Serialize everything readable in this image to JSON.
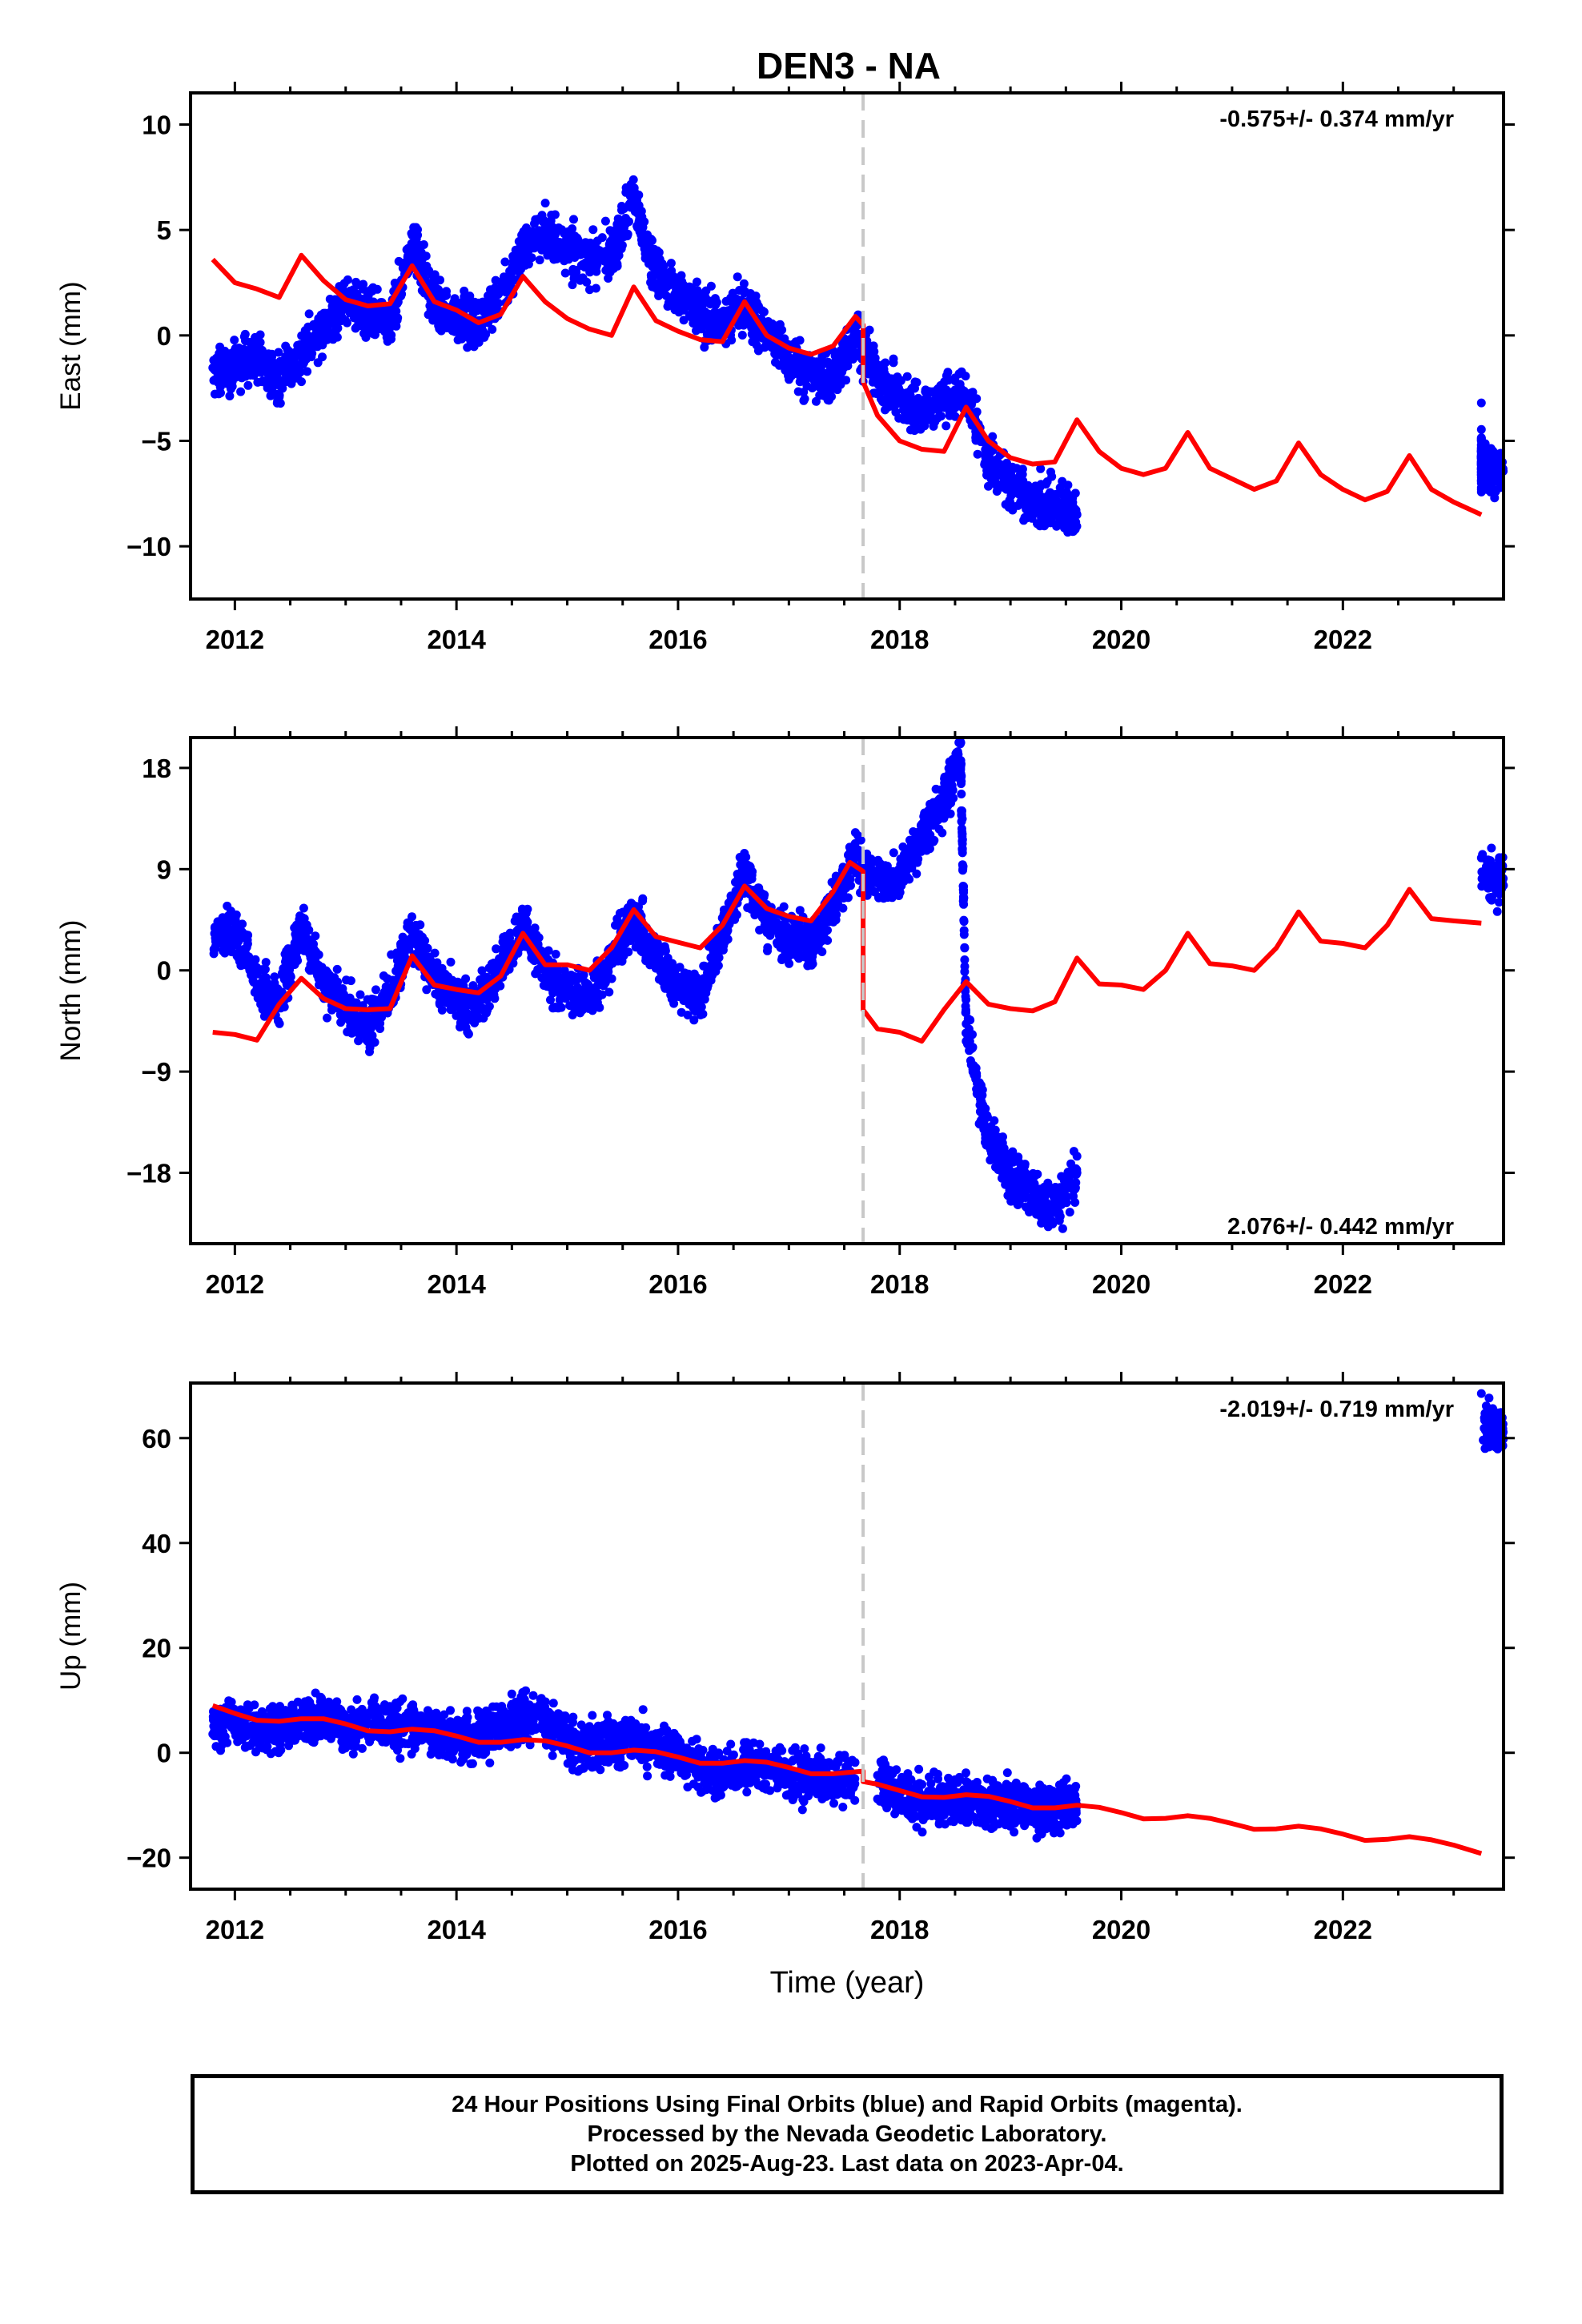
{
  "title": "DEN3 - NA",
  "xlabel": "Time (year)",
  "footer": {
    "line1": "24 Hour Positions Using Final Orbits (blue) and Rapid Orbits (magenta).",
    "line2": "Processed by the Nevada Geodetic Laboratory.",
    "line3": "Plotted on 2025-Aug-23. Last data on 2023-Apr-04."
  },
  "colors": {
    "data": "#0000ff",
    "model": "#ff0000",
    "break": "#c8c8c8",
    "axes": "#000000"
  },
  "chart_data": [
    {
      "type": "scatter",
      "panel": "east",
      "ylabel": "East (mm)",
      "rate_label": "-0.575+/- 0.374 mm/yr",
      "rate_position": "top-right",
      "xlim": [
        2011.6,
        2023.45
      ],
      "ylim": [
        -12.5,
        11.5
      ],
      "xticks": [
        2012,
        2014,
        2016,
        2018,
        2020,
        2022
      ],
      "yticks": [
        -10,
        -5,
        0,
        5,
        10
      ],
      "yticklabels": [
        "−10",
        "−5",
        "0",
        "5",
        "10"
      ],
      "equipment_break": 2017.67,
      "data_points_approx": [
        [
          2011.8,
          -2.0
        ],
        [
          2012.0,
          -1.5
        ],
        [
          2012.2,
          -1.0
        ],
        [
          2012.4,
          -2.0
        ],
        [
          2012.6,
          -1.0
        ],
        [
          2012.8,
          0.5
        ],
        [
          2013.0,
          1.5
        ],
        [
          2013.2,
          1.0
        ],
        [
          2013.4,
          0.5
        ],
        [
          2013.6,
          4.5
        ],
        [
          2013.8,
          1.5
        ],
        [
          2014.0,
          1.0
        ],
        [
          2014.2,
          0.5
        ],
        [
          2014.4,
          2.0
        ],
        [
          2014.6,
          4.0
        ],
        [
          2014.8,
          5.0
        ],
        [
          2015.0,
          4.0
        ],
        [
          2015.2,
          3.5
        ],
        [
          2015.4,
          4.0
        ],
        [
          2015.6,
          6.5
        ],
        [
          2015.8,
          3.0
        ],
        [
          2016.0,
          2.0
        ],
        [
          2016.2,
          1.0
        ],
        [
          2016.4,
          0.5
        ],
        [
          2016.6,
          1.5
        ],
        [
          2016.8,
          0.0
        ],
        [
          2017.0,
          -1.0
        ],
        [
          2017.2,
          -2.0
        ],
        [
          2017.4,
          -2.0
        ],
        [
          2017.6,
          0.0
        ],
        [
          2017.8,
          -2.0
        ],
        [
          2018.0,
          -3.0
        ],
        [
          2018.2,
          -3.5
        ],
        [
          2018.4,
          -3.0
        ],
        [
          2018.6,
          -3.0
        ],
        [
          2018.8,
          -6.0
        ],
        [
          2019.0,
          -7.0
        ],
        [
          2019.2,
          -8.0
        ],
        [
          2019.4,
          -8.0
        ],
        [
          2019.6,
          -8.5
        ],
        [
          2023.25,
          -3.2
        ],
        [
          2023.25,
          -5.5
        ],
        [
          2023.25,
          -6.2
        ]
      ],
      "model_points": [
        [
          2011.8,
          3.6
        ],
        [
          2012.0,
          2.5
        ],
        [
          2012.2,
          2.2
        ],
        [
          2012.4,
          1.8
        ],
        [
          2012.6,
          3.8
        ],
        [
          2012.8,
          2.6
        ],
        [
          2013.0,
          1.7
        ],
        [
          2013.2,
          1.4
        ],
        [
          2013.4,
          1.5
        ],
        [
          2013.6,
          3.3
        ],
        [
          2013.8,
          1.6
        ],
        [
          2014.0,
          1.2
        ],
        [
          2014.2,
          0.6
        ],
        [
          2014.4,
          1.0
        ],
        [
          2014.6,
          2.8
        ],
        [
          2014.8,
          1.6
        ],
        [
          2015.0,
          0.8
        ],
        [
          2015.2,
          0.3
        ],
        [
          2015.4,
          0.0
        ],
        [
          2015.6,
          2.3
        ],
        [
          2015.8,
          0.7
        ],
        [
          2016.0,
          0.2
        ],
        [
          2016.2,
          -0.2
        ],
        [
          2016.4,
          -0.3
        ],
        [
          2016.6,
          1.6
        ],
        [
          2016.8,
          0.0
        ],
        [
          2017.0,
          -0.6
        ],
        [
          2017.2,
          -0.9
        ],
        [
          2017.4,
          -0.5
        ],
        [
          2017.6,
          0.9
        ],
        [
          2017.67,
          0.5
        ],
        [
          2017.67,
          -2.2
        ],
        [
          2017.8,
          -3.8
        ],
        [
          2018.0,
          -5.0
        ],
        [
          2018.2,
          -5.4
        ],
        [
          2018.4,
          -5.5
        ],
        [
          2018.6,
          -3.4
        ],
        [
          2018.8,
          -5.0
        ],
        [
          2019.0,
          -5.8
        ],
        [
          2019.2,
          -6.1
        ],
        [
          2019.4,
          -6.0
        ],
        [
          2019.6,
          -4.0
        ],
        [
          2019.8,
          -5.5
        ],
        [
          2020.0,
          -6.3
        ],
        [
          2020.2,
          -6.6
        ],
        [
          2020.4,
          -6.3
        ],
        [
          2020.6,
          -4.6
        ],
        [
          2020.8,
          -6.3
        ],
        [
          2021.0,
          -6.8
        ],
        [
          2021.2,
          -7.3
        ],
        [
          2021.4,
          -6.9
        ],
        [
          2021.6,
          -5.1
        ],
        [
          2021.8,
          -6.6
        ],
        [
          2022.0,
          -7.3
        ],
        [
          2022.2,
          -7.8
        ],
        [
          2022.4,
          -7.4
        ],
        [
          2022.6,
          -5.7
        ],
        [
          2022.8,
          -7.3
        ],
        [
          2023.0,
          -7.9
        ],
        [
          2023.25,
          -8.5
        ]
      ]
    },
    {
      "type": "scatter",
      "panel": "north",
      "ylabel": "North (mm)",
      "rate_label": "2.076+/- 0.442 mm/yr",
      "rate_position": "bottom-right",
      "xlim": [
        2011.6,
        2023.45
      ],
      "ylim": [
        -24.3,
        20.7
      ],
      "xticks": [
        2012,
        2014,
        2016,
        2018,
        2020,
        2022
      ],
      "yticks": [
        -18,
        -9,
        0,
        9,
        18
      ],
      "yticklabels": [
        "−18",
        "−9",
        "0",
        "9",
        "18"
      ],
      "equipment_break": 2017.67,
      "data_points_approx": [
        [
          2011.8,
          3.0
        ],
        [
          2012.0,
          3.5
        ],
        [
          2012.2,
          -1.0
        ],
        [
          2012.4,
          -3.0
        ],
        [
          2012.6,
          4.0
        ],
        [
          2012.8,
          -1.0
        ],
        [
          2013.0,
          -3.0
        ],
        [
          2013.2,
          -5.0
        ],
        [
          2013.4,
          -2.0
        ],
        [
          2013.6,
          3.5
        ],
        [
          2013.8,
          -1.0
        ],
        [
          2014.0,
          -3.0
        ],
        [
          2014.2,
          -3.0
        ],
        [
          2014.4,
          0.5
        ],
        [
          2014.6,
          4.0
        ],
        [
          2014.8,
          0.0
        ],
        [
          2015.0,
          -2.0
        ],
        [
          2015.2,
          -2.5
        ],
        [
          2015.4,
          1.0
        ],
        [
          2015.6,
          5.0
        ],
        [
          2015.8,
          1.0
        ],
        [
          2016.0,
          -1.5
        ],
        [
          2016.2,
          -2.0
        ],
        [
          2016.4,
          3.0
        ],
        [
          2016.6,
          9.0
        ],
        [
          2016.8,
          4.0
        ],
        [
          2017.0,
          3.0
        ],
        [
          2017.2,
          2.0
        ],
        [
          2017.4,
          6.0
        ],
        [
          2017.6,
          10.0
        ],
        [
          2017.8,
          8.0
        ],
        [
          2018.0,
          8.0
        ],
        [
          2018.2,
          12.0
        ],
        [
          2018.4,
          15.0
        ],
        [
          2018.55,
          19.0
        ],
        [
          2018.6,
          -5.0
        ],
        [
          2018.8,
          -15.0
        ],
        [
          2019.0,
          -18.0
        ],
        [
          2019.2,
          -20.0
        ],
        [
          2019.4,
          -21.0
        ],
        [
          2019.6,
          -18.0
        ],
        [
          2023.25,
          10.0
        ],
        [
          2023.25,
          8.0
        ]
      ],
      "model_points": [
        [
          2011.8,
          -5.5
        ],
        [
          2012.0,
          -5.7
        ],
        [
          2012.2,
          -6.2
        ],
        [
          2012.4,
          -3.0
        ],
        [
          2012.6,
          -0.7
        ],
        [
          2012.8,
          -2.5
        ],
        [
          2013.0,
          -3.4
        ],
        [
          2013.2,
          -3.5
        ],
        [
          2013.4,
          -3.4
        ],
        [
          2013.6,
          1.3
        ],
        [
          2013.8,
          -1.3
        ],
        [
          2014.0,
          -1.7
        ],
        [
          2014.2,
          -2.0
        ],
        [
          2014.4,
          -0.5
        ],
        [
          2014.6,
          3.3
        ],
        [
          2014.8,
          0.5
        ],
        [
          2015.0,
          0.5
        ],
        [
          2015.2,
          0.0
        ],
        [
          2015.4,
          2.0
        ],
        [
          2015.6,
          5.4
        ],
        [
          2015.8,
          3.0
        ],
        [
          2016.0,
          2.5
        ],
        [
          2016.2,
          2.0
        ],
        [
          2016.4,
          4.0
        ],
        [
          2016.6,
          7.5
        ],
        [
          2016.8,
          5.5
        ],
        [
          2017.0,
          4.8
        ],
        [
          2017.2,
          4.4
        ],
        [
          2017.4,
          7.0
        ],
        [
          2017.55,
          9.6
        ],
        [
          2017.67,
          8.8
        ],
        [
          2017.67,
          -3.5
        ],
        [
          2017.8,
          -5.2
        ],
        [
          2018.0,
          -5.5
        ],
        [
          2018.2,
          -6.3
        ],
        [
          2018.4,
          -3.5
        ],
        [
          2018.6,
          -1.0
        ],
        [
          2018.8,
          -3.0
        ],
        [
          2019.0,
          -3.4
        ],
        [
          2019.2,
          -3.6
        ],
        [
          2019.4,
          -2.8
        ],
        [
          2019.6,
          1.1
        ],
        [
          2019.8,
          -1.2
        ],
        [
          2020.0,
          -1.3
        ],
        [
          2020.2,
          -1.7
        ],
        [
          2020.4,
          0.0
        ],
        [
          2020.6,
          3.3
        ],
        [
          2020.8,
          0.6
        ],
        [
          2021.0,
          0.4
        ],
        [
          2021.2,
          0.0
        ],
        [
          2021.4,
          2.0
        ],
        [
          2021.6,
          5.2
        ],
        [
          2021.8,
          2.6
        ],
        [
          2022.0,
          2.4
        ],
        [
          2022.2,
          2.0
        ],
        [
          2022.4,
          4.0
        ],
        [
          2022.6,
          7.2
        ],
        [
          2022.8,
          4.6
        ],
        [
          2023.0,
          4.4
        ],
        [
          2023.25,
          4.2
        ]
      ]
    },
    {
      "type": "scatter",
      "panel": "up",
      "ylabel": "Up (mm)",
      "rate_label": "-2.019+/- 0.719 mm/yr",
      "rate_position": "top-right",
      "xlim": [
        2011.6,
        2023.45
      ],
      "ylim": [
        -26,
        70.5
      ],
      "xticks": [
        2012,
        2014,
        2016,
        2018,
        2020,
        2022
      ],
      "yticks": [
        -20,
        0,
        20,
        40,
        60
      ],
      "yticklabels": [
        "−20",
        "0",
        "20",
        "40",
        "60"
      ],
      "equipment_break": 2017.67,
      "data_points_approx": [
        [
          2011.8,
          5.0
        ],
        [
          2012.0,
          6.0
        ],
        [
          2012.2,
          5.0
        ],
        [
          2012.4,
          4.0
        ],
        [
          2012.6,
          6.0
        ],
        [
          2012.8,
          7.0
        ],
        [
          2013.0,
          5.0
        ],
        [
          2013.2,
          6.0
        ],
        [
          2013.4,
          5.0
        ],
        [
          2013.6,
          5.0
        ],
        [
          2013.8,
          4.0
        ],
        [
          2014.0,
          3.0
        ],
        [
          2014.2,
          3.0
        ],
        [
          2014.4,
          5.0
        ],
        [
          2014.6,
          7.0
        ],
        [
          2014.8,
          6.0
        ],
        [
          2015.0,
          2.0
        ],
        [
          2015.2,
          1.0
        ],
        [
          2015.4,
          2.0
        ],
        [
          2015.6,
          3.0
        ],
        [
          2015.8,
          1.0
        ],
        [
          2016.0,
          0.0
        ],
        [
          2016.2,
          -3.0
        ],
        [
          2016.4,
          -4.0
        ],
        [
          2016.6,
          -2.0
        ],
        [
          2016.8,
          -3.0
        ],
        [
          2017.0,
          -4.0
        ],
        [
          2017.2,
          -4.0
        ],
        [
          2017.4,
          -5.0
        ],
        [
          2017.8,
          -6.0
        ],
        [
          2018.0,
          -8.0
        ],
        [
          2018.2,
          -9.0
        ],
        [
          2018.4,
          -9.0
        ],
        [
          2018.6,
          -9.0
        ],
        [
          2018.8,
          -10.0
        ],
        [
          2019.0,
          -10.0
        ],
        [
          2019.2,
          -10.0
        ],
        [
          2019.4,
          -11.0
        ],
        [
          2019.6,
          -10.0
        ],
        [
          2023.25,
          68.5
        ],
        [
          2023.25,
          62.0
        ]
      ],
      "model_points": [
        [
          2011.8,
          9.0
        ],
        [
          2012.0,
          7.5
        ],
        [
          2012.2,
          6.2
        ],
        [
          2012.4,
          6.0
        ],
        [
          2012.6,
          6.5
        ],
        [
          2012.8,
          6.5
        ],
        [
          2013.0,
          5.5
        ],
        [
          2013.2,
          4.2
        ],
        [
          2013.4,
          4.0
        ],
        [
          2013.6,
          4.5
        ],
        [
          2013.8,
          4.2
        ],
        [
          2014.0,
          3.2
        ],
        [
          2014.2,
          2.0
        ],
        [
          2014.4,
          2.0
        ],
        [
          2014.6,
          2.5
        ],
        [
          2014.8,
          2.3
        ],
        [
          2015.0,
          1.3
        ],
        [
          2015.2,
          0.0
        ],
        [
          2015.4,
          0.0
        ],
        [
          2015.6,
          0.5
        ],
        [
          2015.8,
          0.2
        ],
        [
          2016.0,
          -0.8
        ],
        [
          2016.2,
          -2.0
        ],
        [
          2016.4,
          -2.0
        ],
        [
          2016.6,
          -1.5
        ],
        [
          2016.8,
          -1.8
        ],
        [
          2017.0,
          -2.8
        ],
        [
          2017.2,
          -4.0
        ],
        [
          2017.4,
          -4.0
        ],
        [
          2017.67,
          -3.5
        ],
        [
          2017.67,
          -5.5
        ],
        [
          2017.8,
          -6.0
        ],
        [
          2018.0,
          -7.2
        ],
        [
          2018.2,
          -8.4
        ],
        [
          2018.4,
          -8.5
        ],
        [
          2018.6,
          -8.0
        ],
        [
          2018.8,
          -8.3
        ],
        [
          2019.0,
          -9.3
        ],
        [
          2019.2,
          -10.5
        ],
        [
          2019.4,
          -10.5
        ],
        [
          2019.6,
          -10.0
        ],
        [
          2019.8,
          -10.4
        ],
        [
          2020.0,
          -11.4
        ],
        [
          2020.2,
          -12.6
        ],
        [
          2020.4,
          -12.5
        ],
        [
          2020.6,
          -12.0
        ],
        [
          2020.8,
          -12.5
        ],
        [
          2021.0,
          -13.5
        ],
        [
          2021.2,
          -14.6
        ],
        [
          2021.4,
          -14.5
        ],
        [
          2021.6,
          -14.0
        ],
        [
          2021.8,
          -14.5
        ],
        [
          2022.0,
          -15.5
        ],
        [
          2022.2,
          -16.7
        ],
        [
          2022.4,
          -16.5
        ],
        [
          2022.6,
          -16.0
        ],
        [
          2022.8,
          -16.6
        ],
        [
          2023.0,
          -17.6
        ],
        [
          2023.25,
          -19.2
        ]
      ]
    }
  ]
}
